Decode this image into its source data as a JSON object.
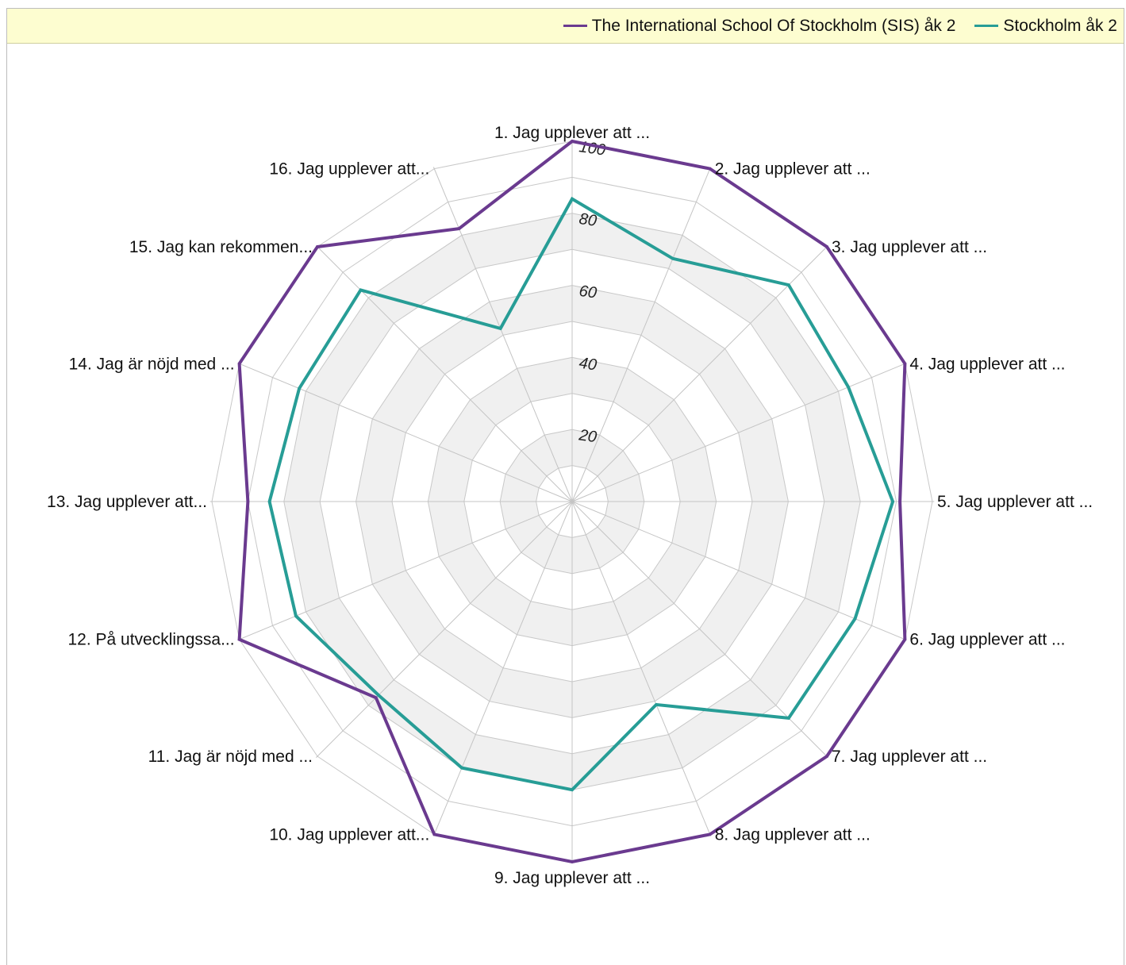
{
  "chart_data": {
    "type": "radar",
    "title": "",
    "categories": [
      "1. Jag upplever att ...",
      "2. Jag upplever att ...",
      "3. Jag upplever att ...",
      "4. Jag upplever att ...",
      "5. Jag upplever att ...",
      "6. Jag upplever att ...",
      "7. Jag upplever att ...",
      "8. Jag upplever att ...",
      "9. Jag upplever att ...",
      "10. Jag upplever att...",
      "11. Jag är nöjd med ...",
      "12. På utvecklingssa...",
      "13. Jag upplever att...",
      "14. Jag är nöjd med ...",
      "15. Jag kan rekommen...",
      "16. Jag upplever att..."
    ],
    "series": [
      {
        "name": "The International School Of Stockholm (SIS) åk 2",
        "color": "#6a3a8f",
        "values": [
          100,
          100,
          100,
          100,
          91,
          100,
          100,
          100,
          100,
          100,
          77,
          100,
          90,
          100,
          100,
          82
        ]
      },
      {
        "name": "Stockholm åk 2",
        "color": "#279d96",
        "values": [
          84,
          73,
          85,
          83,
          89,
          85,
          85,
          61,
          80,
          80,
          76,
          83,
          84,
          82,
          83,
          52
        ]
      }
    ],
    "r_ticks": [
      20,
      40,
      60,
      80,
      100
    ],
    "r_range": [
      0,
      100
    ],
    "legend": "top-right",
    "grid": true
  }
}
